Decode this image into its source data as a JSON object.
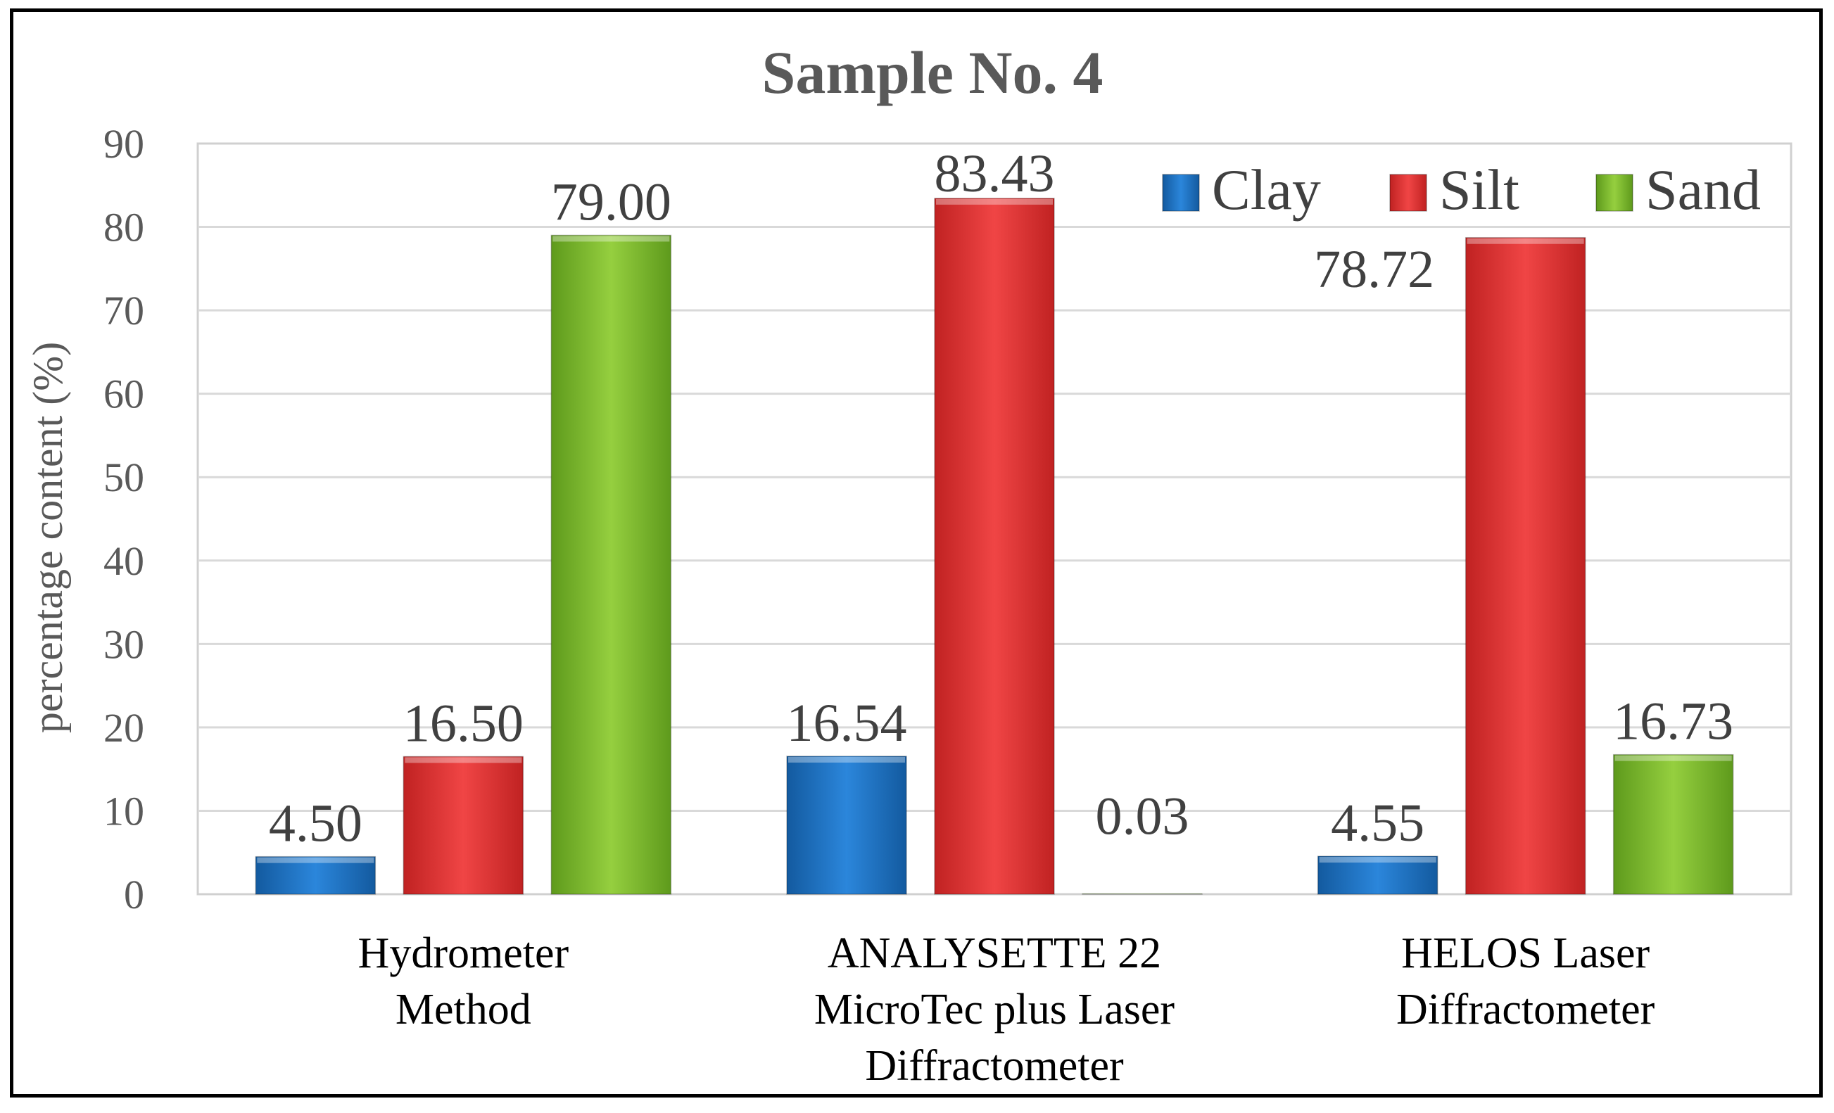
{
  "chart_data": {
    "type": "bar",
    "title": "Sample No. 4",
    "xlabel": "",
    "ylabel": "percentage content (%)",
    "ylim": [
      0,
      90
    ],
    "y_ticks": [
      0,
      10,
      20,
      30,
      40,
      50,
      60,
      70,
      80,
      90
    ],
    "grid": true,
    "legend_position": "top-right",
    "categories": [
      [
        "Hydrometer",
        "Method"
      ],
      [
        "ANALYSETTE 22",
        "MicroTec plus Laser",
        "Diffractometer"
      ],
      [
        "HELOS Laser",
        "Diffractometer"
      ]
    ],
    "series": [
      {
        "name": "Clay",
        "color": "#1f72c4",
        "values": [
          4.5,
          16.54,
          4.55
        ],
        "labels": [
          "4.50",
          "16.54",
          "4.55"
        ]
      },
      {
        "name": "Silt",
        "color": "#e03131",
        "values": [
          16.5,
          83.43,
          78.72
        ],
        "labels": [
          "16.50",
          "83.43",
          "78.72"
        ]
      },
      {
        "name": "Sand",
        "color": "#77b52a",
        "values": [
          79.0,
          0.03,
          16.73
        ],
        "labels": [
          "79.00",
          "0.03",
          "16.73"
        ]
      }
    ]
  }
}
